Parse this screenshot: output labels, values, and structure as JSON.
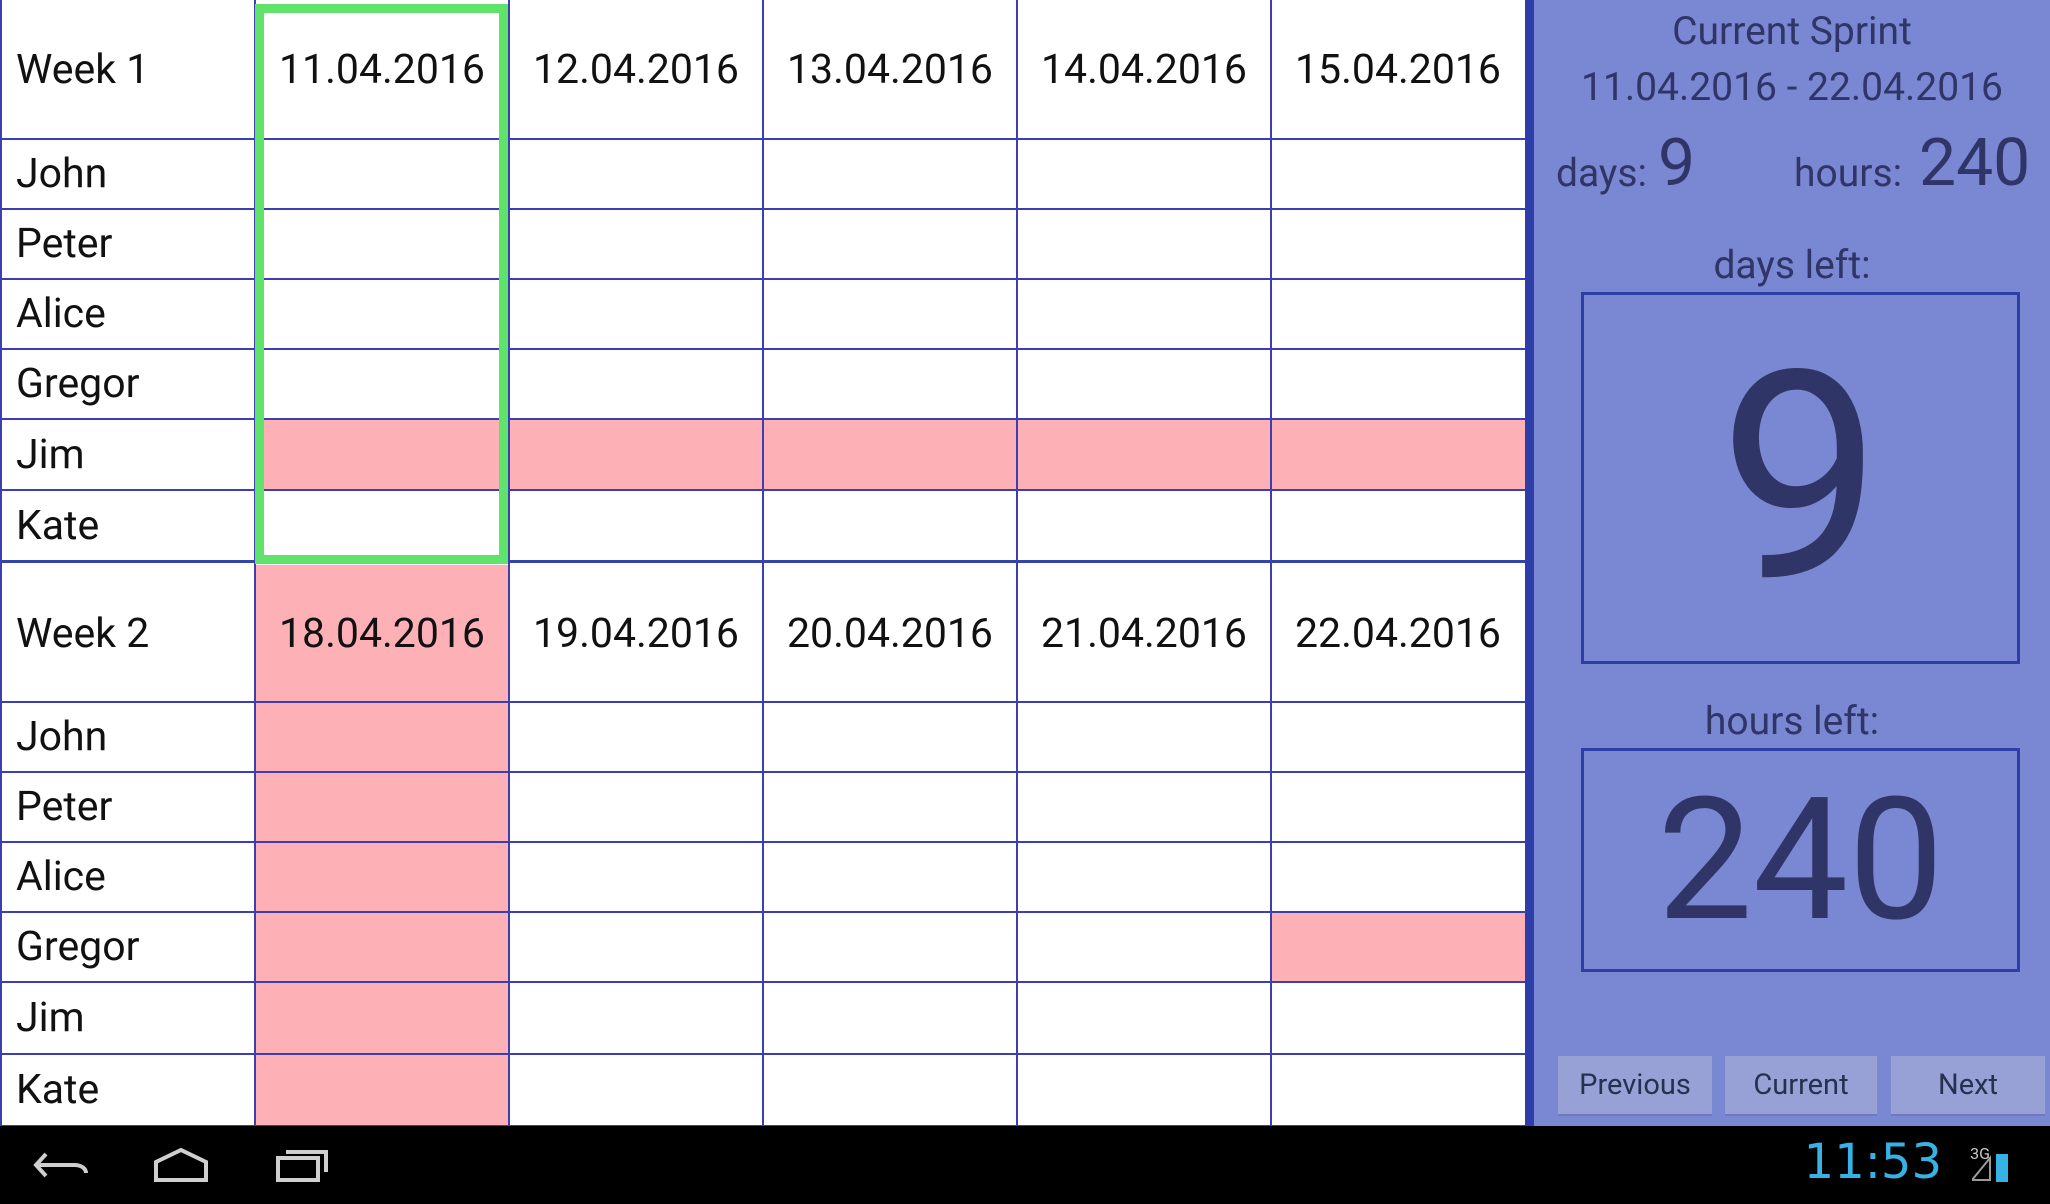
{
  "weeks": [
    {
      "label": "Week 1",
      "dates": [
        "11.04.2016",
        "12.04.2016",
        "13.04.2016",
        "14.04.2016",
        "15.04.2016"
      ],
      "people": [
        {
          "name": "John",
          "off": [
            false,
            false,
            false,
            false,
            false
          ]
        },
        {
          "name": "Peter",
          "off": [
            false,
            false,
            false,
            false,
            false
          ]
        },
        {
          "name": "Alice",
          "off": [
            false,
            false,
            false,
            false,
            false
          ]
        },
        {
          "name": "Gregor",
          "off": [
            false,
            false,
            false,
            false,
            false
          ]
        },
        {
          "name": "Jim",
          "off": [
            true,
            true,
            true,
            true,
            true
          ]
        },
        {
          "name": "Kate",
          "off": [
            false,
            false,
            false,
            false,
            false
          ]
        }
      ]
    },
    {
      "label": "Week 2",
      "dates": [
        "18.04.2016",
        "19.04.2016",
        "20.04.2016",
        "21.04.2016",
        "22.04.2016"
      ],
      "date_off": [
        true,
        false,
        false,
        false,
        false
      ],
      "people": [
        {
          "name": "John",
          "off": [
            true,
            false,
            false,
            false,
            false
          ]
        },
        {
          "name": "Peter",
          "off": [
            true,
            false,
            false,
            false,
            false
          ]
        },
        {
          "name": "Alice",
          "off": [
            true,
            false,
            false,
            false,
            false
          ]
        },
        {
          "name": "Gregor",
          "off": [
            true,
            false,
            false,
            false,
            true
          ]
        },
        {
          "name": "Jim",
          "off": [
            true,
            false,
            false,
            false,
            false
          ]
        },
        {
          "name": "Kate",
          "off": [
            true,
            false,
            false,
            false,
            false
          ]
        }
      ]
    }
  ],
  "selected_date": "11.04.2016",
  "panel": {
    "title": "Current Sprint",
    "range": "11.04.2016  -  22.04.2016",
    "days_label": "days:",
    "days_value": "9",
    "hours_label": "hours:",
    "hours_value": "240",
    "days_left_label": "days left:",
    "days_left_value": "9",
    "hours_left_label": "hours left:",
    "hours_left_value": "240",
    "buttons": {
      "previous": "Previous",
      "current": "Current",
      "next": "Next"
    }
  },
  "status_bar": {
    "time": "11:53",
    "network": "3G"
  },
  "colors": {
    "off_cell": "#fdb0b5",
    "selection": "#5fe36a",
    "grid_line": "#3d3fb0",
    "panel_bg": "#7a87d3",
    "panel_text": "#2f3566",
    "clock": "#37b2e5"
  }
}
